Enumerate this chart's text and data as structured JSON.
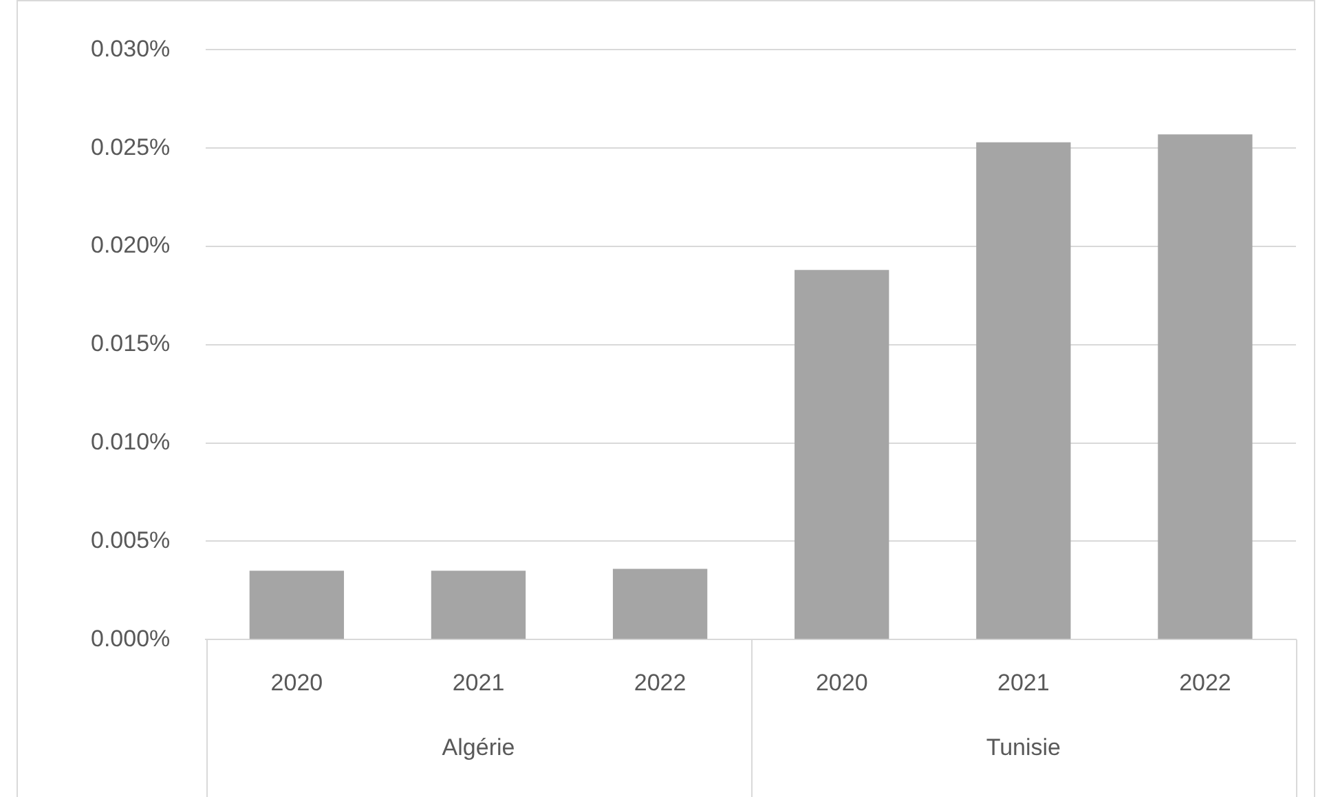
{
  "chart_data": {
    "type": "bar",
    "categories": [
      "2020",
      "2021",
      "2022",
      "2020",
      "2021",
      "2022"
    ],
    "values": [
      0.0035,
      0.0035,
      0.0036,
      0.0188,
      0.0253,
      0.0257
    ],
    "color": "#a5a5a5",
    "ylim": [
      0,
      0.03
    ],
    "yticks": [
      {
        "value": 0,
        "label": "0.000%"
      },
      {
        "value": 0.005,
        "label": "0.005%"
      },
      {
        "value": 0.01,
        "label": "0.010%"
      },
      {
        "value": 0.015,
        "label": "0.015%"
      },
      {
        "value": 0.02,
        "label": "0.020%"
      },
      {
        "value": 0.025,
        "label": "0.025%"
      },
      {
        "value": 0.03,
        "label": "0.030%"
      }
    ],
    "grid": "y",
    "legend": false,
    "annotations": [
      "Algérie",
      "Tunisie"
    ]
  }
}
